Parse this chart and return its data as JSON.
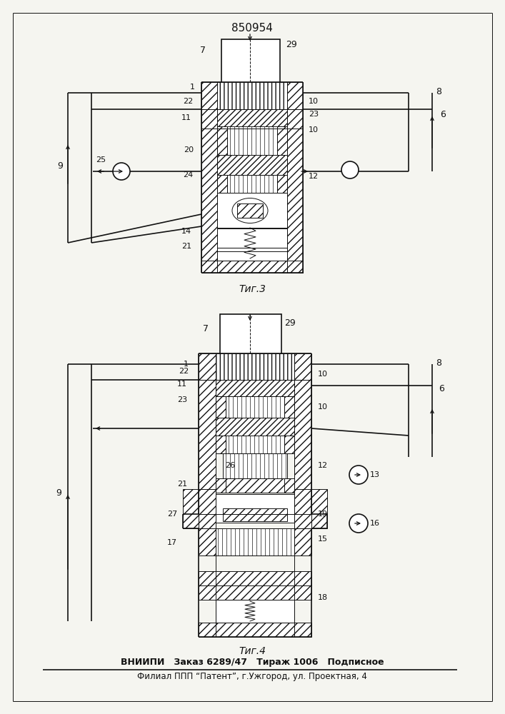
{
  "patent_number": "850954",
  "bottom_text_line1": "ВНИИПИ   Заказ 6289/47   Тираж 1006   Подписное",
  "bottom_text_line2": "Филиал ППП “Патент”, г.Ужгород, ул. Проектная, 4",
  "bg_color": "#f5f5f0",
  "line_color": "#111111"
}
